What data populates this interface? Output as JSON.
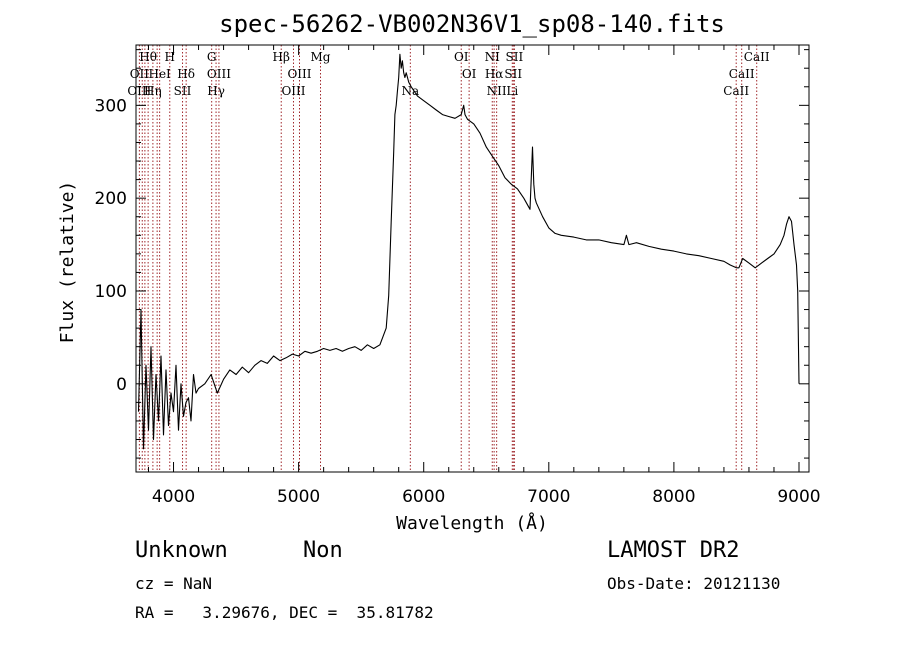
{
  "chart_data": {
    "type": "line",
    "title": "spec-56262-VB002N36V1_sp08-140.fits",
    "xlabel": "Wavelength (Å)",
    "ylabel": "Flux (relative)",
    "xlim": [
      3700,
      9080
    ],
    "ylim": [
      -95,
      365
    ],
    "xticks": [
      4000,
      5000,
      6000,
      7000,
      8000,
      9000
    ],
    "yticks": [
      0,
      100,
      200,
      300
    ],
    "grid": false,
    "series": [
      {
        "color": "#000000",
        "x": [
          3720,
          3740,
          3760,
          3780,
          3800,
          3820,
          3840,
          3860,
          3880,
          3900,
          3920,
          3940,
          3960,
          3980,
          4000,
          4020,
          4040,
          4060,
          4080,
          4100,
          4120,
          4140,
          4160,
          4180,
          4200,
          4250,
          4300,
          4350,
          4400,
          4450,
          4500,
          4550,
          4600,
          4650,
          4700,
          4750,
          4800,
          4850,
          4900,
          4950,
          5000,
          5050,
          5100,
          5150,
          5200,
          5250,
          5300,
          5350,
          5400,
          5450,
          5500,
          5550,
          5600,
          5650,
          5700,
          5720,
          5740,
          5760,
          5770,
          5780,
          5790,
          5800,
          5810,
          5820,
          5830,
          5840,
          5850,
          5860,
          5870,
          5880,
          5900,
          5950,
          6000,
          6050,
          6100,
          6150,
          6200,
          6250,
          6300,
          6320,
          6330,
          6350,
          6400,
          6450,
          6500,
          6550,
          6600,
          6650,
          6700,
          6750,
          6800,
          6850,
          6870,
          6880,
          6890,
          6900,
          6950,
          7000,
          7050,
          7100,
          7200,
          7300,
          7400,
          7500,
          7600,
          7620,
          7640,
          7700,
          7800,
          7900,
          8000,
          8100,
          8200,
          8300,
          8400,
          8450,
          8500,
          8520,
          8550,
          8600,
          8650,
          8700,
          8750,
          8800,
          8850,
          8880,
          8900,
          8920,
          8940,
          8960,
          8980,
          8990,
          9000
        ],
        "y": [
          -30,
          80,
          -70,
          20,
          -50,
          40,
          -60,
          10,
          -40,
          30,
          -55,
          15,
          -45,
          -10,
          -30,
          20,
          -50,
          0,
          -35,
          -20,
          -15,
          -40,
          10,
          -10,
          -5,
          0,
          10,
          -10,
          5,
          15,
          10,
          18,
          12,
          20,
          25,
          22,
          30,
          25,
          28,
          32,
          30,
          35,
          33,
          35,
          38,
          36,
          38,
          35,
          38,
          40,
          36,
          42,
          38,
          42,
          60,
          95,
          175,
          250,
          290,
          300,
          315,
          330,
          355,
          340,
          348,
          335,
          330,
          335,
          330,
          325,
          320,
          310,
          305,
          300,
          295,
          290,
          288,
          286,
          290,
          300,
          290,
          285,
          280,
          270,
          255,
          245,
          235,
          222,
          215,
          210,
          200,
          188,
          255,
          215,
          200,
          195,
          180,
          168,
          162,
          160,
          158,
          155,
          155,
          152,
          150,
          160,
          150,
          152,
          148,
          145,
          143,
          140,
          138,
          135,
          132,
          128,
          125,
          125,
          135,
          130,
          125,
          130,
          135,
          140,
          150,
          160,
          172,
          180,
          175,
          150,
          128,
          100,
          0
        ]
      }
    ],
    "line_labels": [
      {
        "text": "Hθ",
        "x": 3797,
        "row": 1
      },
      {
        "text": "H",
        "x": 3970,
        "row": 1
      },
      {
        "text": "G",
        "x": 4305,
        "row": 1
      },
      {
        "text": "Hβ",
        "x": 4861,
        "row": 1
      },
      {
        "text": "Mg",
        "x": 5175,
        "row": 1
      },
      {
        "text": "OI",
        "x": 6300,
        "row": 1
      },
      {
        "text": "NI",
        "x": 6548,
        "row": 1
      },
      {
        "text": "SII",
        "x": 6725,
        "row": 1
      },
      {
        "text": "CaII",
        "x": 8662,
        "row": 1
      },
      {
        "text": "OII",
        "x": 3727,
        "row": 2
      },
      {
        "text": "HeI",
        "x": 3889,
        "row": 2
      },
      {
        "text": "Hδ",
        "x": 4101,
        "row": 2
      },
      {
        "text": "OIII",
        "x": 4363,
        "row": 2
      },
      {
        "text": "OIII",
        "x": 5007,
        "row": 2
      },
      {
        "text": "OI",
        "x": 6363,
        "row": 2
      },
      {
        "text": "Hα",
        "x": 6563,
        "row": 2
      },
      {
        "text": "SII",
        "x": 6716,
        "row": 2
      },
      {
        "text": "CaII",
        "x": 8542,
        "row": 2
      },
      {
        "text": "OIII",
        "x": 3727,
        "row": 3
      },
      {
        "text": "Hη",
        "x": 3835,
        "row": 3
      },
      {
        "text": "SII",
        "x": 4072,
        "row": 3
      },
      {
        "text": "Hγ",
        "x": 4340,
        "row": 3
      },
      {
        "text": "OIII",
        "x": 4959,
        "row": 3
      },
      {
        "text": "Na",
        "x": 5893,
        "row": 3
      },
      {
        "text": "NII",
        "x": 6583,
        "row": 3
      },
      {
        "text": "Li",
        "x": 6708,
        "row": 3
      },
      {
        "text": "CaII",
        "x": 8498,
        "row": 3
      }
    ],
    "line_marks": [
      3727,
      3750,
      3771,
      3797,
      3835,
      3869,
      3889,
      3970,
      4072,
      4101,
      4305,
      4340,
      4363,
      4861,
      4959,
      5007,
      5175,
      5893,
      6300,
      6363,
      6548,
      6563,
      6583,
      6708,
      6716,
      6725,
      8498,
      8542,
      8662
    ]
  },
  "info": {
    "object_class": "Unknown",
    "subclass": "Non",
    "survey": "LAMOST DR2",
    "cz": "cz = NaN",
    "obs_date": "Obs-Date: 20121130",
    "coords": "RA =   3.29676, DEC =  35.81782"
  }
}
